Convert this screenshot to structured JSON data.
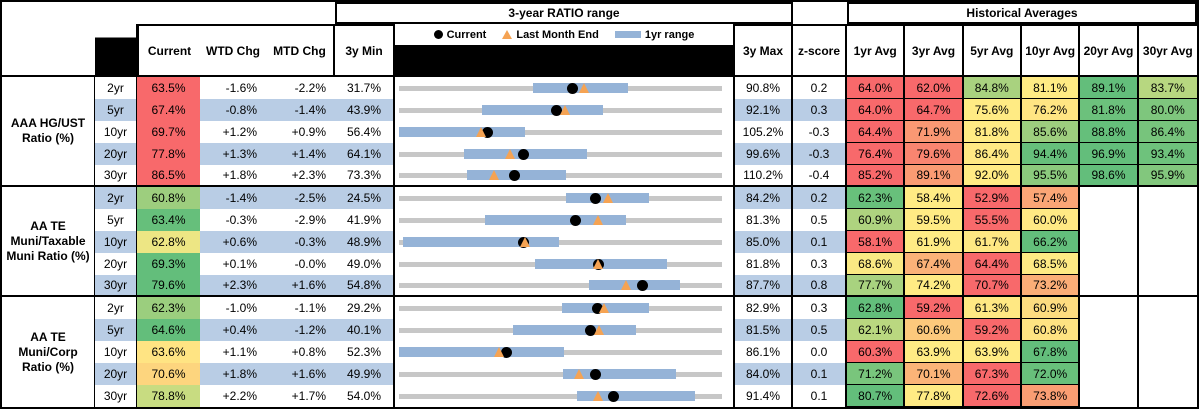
{
  "header": {
    "range_title": "3-year RATIO range",
    "hist_title": "Historical Averages",
    "col_current": "Current",
    "col_wtd": "WTD Chg",
    "col_mtd": "MTD Chg",
    "col_min": "3y Min",
    "col_max": "3y Max",
    "col_z": "z-score",
    "avg_cols": [
      "1yr Avg",
      "3yr Avg",
      "5yr Avg",
      "10yr Avg",
      "20yr Avg",
      "30yr Avg"
    ],
    "legend": {
      "current": "Current",
      "last_month_end": "Last Month End",
      "range": "1yr range"
    }
  },
  "colors": {
    "stripe": "#B9CDE5",
    "range_bar": "#95B3D7",
    "track": "#C7C7C7",
    "current_dot": "#000000",
    "lme_triangle": "#F5A353",
    "scale_red": "#F8696B",
    "scale_yellow": "#FFEB84",
    "scale_green": "#63BE7B"
  },
  "groups": [
    {
      "label": "AAA HG/UST Ratio (%)",
      "rows": [
        {
          "tenor": "2yr",
          "current": "63.5%",
          "current_bg": "#F8696B",
          "wtd": "-1.6%",
          "mtd": "-2.2%",
          "min": "31.7%",
          "max": "90.8%",
          "z": "0.2",
          "lo": 56.3,
          "hi": 73.7,
          "lme": 65.7,
          "avgs": [
            {
              "v": "64.0%",
              "c": "#F8696B"
            },
            {
              "v": "62.0%",
              "c": "#F8696B"
            },
            {
              "v": "84.8%",
              "c": "#A9D27F"
            },
            {
              "v": "81.1%",
              "c": "#FFEB84"
            },
            {
              "v": "89.1%",
              "c": "#63BE7B"
            },
            {
              "v": "83.7%",
              "c": "#B7D780"
            }
          ]
        },
        {
          "tenor": "5yr",
          "current": "67.4%",
          "current_bg": "#F8696B",
          "wtd": "-0.8%",
          "mtd": "-1.4%",
          "min": "43.9%",
          "max": "92.1%",
          "z": "0.3",
          "lo": 56.3,
          "hi": 74.4,
          "lme": 68.8,
          "avgs": [
            {
              "v": "64.0%",
              "c": "#F8696B"
            },
            {
              "v": "64.7%",
              "c": "#F8696B"
            },
            {
              "v": "75.6%",
              "c": "#FFEB84"
            },
            {
              "v": "76.2%",
              "c": "#FFE583"
            },
            {
              "v": "81.8%",
              "c": "#6CC17C"
            },
            {
              "v": "80.0%",
              "c": "#7EC67D"
            }
          ]
        },
        {
          "tenor": "10yr",
          "current": "69.7%",
          "current_bg": "#F8696B",
          "wtd": "+1.2%",
          "mtd": "+0.9%",
          "min": "56.4%",
          "max": "105.2%",
          "z": "-0.3",
          "lo": 56.4,
          "hi": 75.5,
          "lme": 68.8,
          "avgs": [
            {
              "v": "64.4%",
              "c": "#F8696B"
            },
            {
              "v": "71.9%",
              "c": "#FA9873"
            },
            {
              "v": "81.8%",
              "c": "#FFEB84"
            },
            {
              "v": "85.6%",
              "c": "#9DCE7E"
            },
            {
              "v": "88.8%",
              "c": "#65BF7B"
            },
            {
              "v": "86.4%",
              "c": "#77C47C"
            }
          ]
        },
        {
          "tenor": "20yr",
          "current": "77.8%",
          "current_bg": "#F8696B",
          "wtd": "+1.3%",
          "mtd": "+1.4%",
          "min": "64.1%",
          "max": "99.6%",
          "z": "-0.3",
          "lo": 71.2,
          "hi": 84.8,
          "lme": 76.4,
          "avgs": [
            {
              "v": "76.4%",
              "c": "#F8696B"
            },
            {
              "v": "79.6%",
              "c": "#F98570"
            },
            {
              "v": "86.4%",
              "c": "#FFE984"
            },
            {
              "v": "94.4%",
              "c": "#66BF7B"
            },
            {
              "v": "96.9%",
              "c": "#63BE7B"
            },
            {
              "v": "93.4%",
              "c": "#6EC27C"
            }
          ]
        },
        {
          "tenor": "30yr",
          "current": "86.5%",
          "current_bg": "#F8696B",
          "wtd": "+1.8%",
          "mtd": "+2.3%",
          "min": "73.3%",
          "max": "110.2%",
          "z": "-0.4",
          "lo": 81.1,
          "hi": 92.4,
          "lme": 84.2,
          "avgs": [
            {
              "v": "85.2%",
              "c": "#F8696B"
            },
            {
              "v": "89.1%",
              "c": "#FA9B73"
            },
            {
              "v": "92.0%",
              "c": "#FFEB84"
            },
            {
              "v": "95.5%",
              "c": "#8BCA7D"
            },
            {
              "v": "98.6%",
              "c": "#63BE7B"
            },
            {
              "v": "95.9%",
              "c": "#82C77D"
            }
          ]
        }
      ]
    },
    {
      "label": "AA TE Muni/Taxable Muni Ratio (%)",
      "rows": [
        {
          "tenor": "2yr",
          "current": "60.8%",
          "current_bg": "#9DCE7E",
          "wtd": "-1.4%",
          "mtd": "-2.5%",
          "min": "24.5%",
          "max": "84.2%",
          "z": "0.2",
          "lo": 55.4,
          "hi": 70.6,
          "lme": 63.3,
          "avgs": [
            {
              "v": "62.3%",
              "c": "#68C07B"
            },
            {
              "v": "58.4%",
              "c": "#FFEB84"
            },
            {
              "v": "52.9%",
              "c": "#F8696B"
            },
            {
              "v": "57.4%",
              "c": "#FBA676"
            }
          ]
        },
        {
          "tenor": "5yr",
          "current": "63.4%",
          "current_bg": "#66BF7B",
          "wtd": "-0.3%",
          "mtd": "-2.9%",
          "min": "41.9%",
          "max": "81.3%",
          "z": "0.5",
          "lo": 52.4,
          "hi": 69.6,
          "lme": 66.3,
          "avgs": [
            {
              "v": "60.9%",
              "c": "#AED37F"
            },
            {
              "v": "59.5%",
              "c": "#FFEB84"
            },
            {
              "v": "55.5%",
              "c": "#F8696B"
            },
            {
              "v": "60.0%",
              "c": "#FFE984"
            }
          ]
        },
        {
          "tenor": "10yr",
          "current": "62.8%",
          "current_bg": "#EDE684",
          "wtd": "+0.6%",
          "mtd": "-0.3%",
          "min": "48.9%",
          "max": "85.0%",
          "z": "0.1",
          "lo": 49.3,
          "hi": 66.8,
          "lme": 63.1,
          "avgs": [
            {
              "v": "58.1%",
              "c": "#F8696B"
            },
            {
              "v": "61.9%",
              "c": "#FFEB84"
            },
            {
              "v": "61.7%",
              "c": "#FEE883"
            },
            {
              "v": "66.2%",
              "c": "#63BE7B"
            }
          ]
        },
        {
          "tenor": "20yr",
          "current": "69.3%",
          "current_bg": "#63BE7B",
          "wtd": "+0.1%",
          "mtd": "-0.0%",
          "min": "49.0%",
          "max": "81.8%",
          "z": "0.3",
          "lo": 62.8,
          "hi": 76.2,
          "lme": 69.3,
          "avgs": [
            {
              "v": "68.6%",
              "c": "#FAE983"
            },
            {
              "v": "67.4%",
              "c": "#FBB278"
            },
            {
              "v": "64.4%",
              "c": "#F8696B"
            },
            {
              "v": "68.5%",
              "c": "#FEEA84"
            }
          ]
        },
        {
          "tenor": "30yr",
          "current": "79.6%",
          "current_bg": "#63BE7B",
          "wtd": "+2.3%",
          "mtd": "+1.6%",
          "min": "54.8%",
          "max": "87.7%",
          "z": "0.8",
          "lo": 74.1,
          "hi": 83.4,
          "lme": 78.0,
          "avgs": [
            {
              "v": "77.7%",
              "c": "#A8D27F"
            },
            {
              "v": "74.2%",
              "c": "#FFEB84"
            },
            {
              "v": "70.7%",
              "c": "#F8696B"
            },
            {
              "v": "73.2%",
              "c": "#FBAE77"
            }
          ]
        }
      ]
    },
    {
      "label": "AA TE Muni/Corp Ratio (%)",
      "rows": [
        {
          "tenor": "2yr",
          "current": "62.3%",
          "current_bg": "#9BCE7E",
          "wtd": "-1.0%",
          "mtd": "-1.1%",
          "min": "29.2%",
          "max": "82.9%",
          "z": "0.3",
          "lo": 56.3,
          "hi": 70.7,
          "lme": 63.4,
          "avgs": [
            {
              "v": "62.8%",
              "c": "#63BE7B"
            },
            {
              "v": "59.2%",
              "c": "#F8696B"
            },
            {
              "v": "61.3%",
              "c": "#FFE883"
            },
            {
              "v": "60.9%",
              "c": "#FDDC80"
            }
          ]
        },
        {
          "tenor": "5yr",
          "current": "64.6%",
          "current_bg": "#63BE7B",
          "wtd": "+0.4%",
          "mtd": "-1.2%",
          "min": "40.1%",
          "max": "81.5%",
          "z": "0.5",
          "lo": 54.7,
          "hi": 70.5,
          "lme": 65.8,
          "avgs": [
            {
              "v": "62.1%",
              "c": "#BAD880"
            },
            {
              "v": "60.6%",
              "c": "#FCC97C"
            },
            {
              "v": "59.2%",
              "c": "#F8696B"
            },
            {
              "v": "60.8%",
              "c": "#FEE382"
            }
          ]
        },
        {
          "tenor": "10yr",
          "current": "63.6%",
          "current_bg": "#FFE483",
          "wtd": "+1.1%",
          "mtd": "+0.8%",
          "min": "52.3%",
          "max": "86.1%",
          "z": "0.0",
          "lo": 52.3,
          "hi": 69.6,
          "lme": 62.8,
          "avgs": [
            {
              "v": "60.3%",
              "c": "#F8696B"
            },
            {
              "v": "63.9%",
              "c": "#FFEB84"
            },
            {
              "v": "63.9%",
              "c": "#FFEB84"
            },
            {
              "v": "67.8%",
              "c": "#63BE7B"
            }
          ]
        },
        {
          "tenor": "20yr",
          "current": "70.6%",
          "current_bg": "#FDD57E",
          "wtd": "+1.8%",
          "mtd": "+1.6%",
          "min": "49.9%",
          "max": "84.0%",
          "z": "0.1",
          "lo": 67.2,
          "hi": 79.2,
          "lme": 69.0,
          "avgs": [
            {
              "v": "71.2%",
              "c": "#79C57C"
            },
            {
              "v": "70.1%",
              "c": "#FBB478"
            },
            {
              "v": "67.3%",
              "c": "#F8696B"
            },
            {
              "v": "72.0%",
              "c": "#68C07B"
            }
          ]
        },
        {
          "tenor": "30yr",
          "current": "78.8%",
          "current_bg": "#C8DC81",
          "wtd": "+2.2%",
          "mtd": "+1.7%",
          "min": "54.0%",
          "max": "91.4%",
          "z": "0.1",
          "lo": 74.6,
          "hi": 88.2,
          "lme": 77.1,
          "avgs": [
            {
              "v": "80.7%",
              "c": "#63BE7B"
            },
            {
              "v": "77.8%",
              "c": "#FFEB84"
            },
            {
              "v": "72.6%",
              "c": "#F8696B"
            },
            {
              "v": "73.8%",
              "c": "#FA9E73"
            }
          ]
        }
      ]
    }
  ]
}
